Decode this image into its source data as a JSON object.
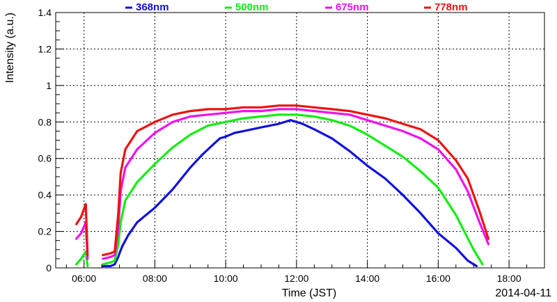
{
  "chart_data": {
    "type": "line",
    "title": "",
    "xlabel": "Time (JST)",
    "ylabel": "Intensity (a.u.)",
    "date_label": "2014-04-11",
    "xlim": [
      "05:12",
      "19:00"
    ],
    "ylim": [
      0,
      1.4
    ],
    "grid": true,
    "legend_position": "top",
    "x_ticks": [
      "06:00",
      "08:00",
      "10:00",
      "12:00",
      "14:00",
      "16:00",
      "18:00"
    ],
    "y_ticks": [
      "0",
      "0.2",
      "0.4",
      "0.6",
      "0.8",
      "1",
      "1.2",
      "1.4"
    ],
    "series": [
      {
        "name": "368nm",
        "color": "#1010dd",
        "segments": [
          [
            [
              "06:32",
              0.01
            ],
            [
              "06:45",
              0.01
            ],
            [
              "06:52",
              0.02
            ],
            [
              "06:58",
              0.06
            ],
            [
              "07:00",
              0.08
            ],
            [
              "07:05",
              0.12
            ],
            [
              "07:15",
              0.18
            ],
            [
              "07:30",
              0.25
            ],
            [
              "08:00",
              0.33
            ],
            [
              "08:30",
              0.43
            ],
            [
              "09:00",
              0.55
            ],
            [
              "09:20",
              0.62
            ],
            [
              "09:40",
              0.68
            ],
            [
              "09:50",
              0.71
            ],
            [
              "10:00",
              0.72
            ],
            [
              "10:15",
              0.74
            ],
            [
              "10:30",
              0.75
            ],
            [
              "11:00",
              0.77
            ],
            [
              "11:30",
              0.79
            ],
            [
              "11:50",
              0.81
            ],
            [
              "12:00",
              0.8
            ],
            [
              "12:10",
              0.79
            ],
            [
              "12:30",
              0.76
            ],
            [
              "13:00",
              0.71
            ],
            [
              "13:30",
              0.64
            ],
            [
              "14:00",
              0.56
            ],
            [
              "14:30",
              0.49
            ],
            [
              "15:00",
              0.4
            ],
            [
              "15:30",
              0.3
            ],
            [
              "16:00",
              0.19
            ],
            [
              "16:30",
              0.11
            ],
            [
              "16:50",
              0.04
            ],
            [
              "17:05",
              0.01
            ]
          ]
        ]
      },
      {
        "name": "500nm",
        "color": "#11ee11",
        "segments": [
          [
            [
              "05:47",
              0.02
            ],
            [
              "05:55",
              0.05
            ],
            [
              "06:03",
              0.09
            ],
            [
              "06:06",
              0.01
            ]
          ],
          [
            [
              "06:32",
              0.02
            ],
            [
              "06:45",
              0.03
            ],
            [
              "06:52",
              0.04
            ],
            [
              "06:58",
              0.13
            ],
            [
              "07:02",
              0.25
            ],
            [
              "07:10",
              0.37
            ],
            [
              "07:30",
              0.47
            ],
            [
              "08:00",
              0.57
            ],
            [
              "08:30",
              0.66
            ],
            [
              "09:00",
              0.73
            ],
            [
              "09:30",
              0.78
            ],
            [
              "10:00",
              0.8
            ],
            [
              "10:30",
              0.82
            ],
            [
              "11:00",
              0.83
            ],
            [
              "11:30",
              0.84
            ],
            [
              "12:00",
              0.84
            ],
            [
              "12:30",
              0.83
            ],
            [
              "13:00",
              0.81
            ],
            [
              "13:30",
              0.78
            ],
            [
              "14:00",
              0.73
            ],
            [
              "14:30",
              0.67
            ],
            [
              "15:00",
              0.61
            ],
            [
              "15:30",
              0.53
            ],
            [
              "16:00",
              0.44
            ],
            [
              "16:30",
              0.29
            ],
            [
              "17:00",
              0.1
            ],
            [
              "17:15",
              0.02
            ]
          ]
        ]
      },
      {
        "name": "675nm",
        "color": "#ee11ee",
        "segments": [
          [
            [
              "05:47",
              0.16
            ],
            [
              "05:55",
              0.19
            ],
            [
              "06:03",
              0.25
            ],
            [
              "06:06",
              0.05
            ]
          ],
          [
            [
              "06:32",
              0.05
            ],
            [
              "06:45",
              0.06
            ],
            [
              "06:52",
              0.07
            ],
            [
              "06:58",
              0.22
            ],
            [
              "07:02",
              0.42
            ],
            [
              "07:10",
              0.55
            ],
            [
              "07:30",
              0.65
            ],
            [
              "08:00",
              0.74
            ],
            [
              "08:30",
              0.8
            ],
            [
              "09:00",
              0.83
            ],
            [
              "09:30",
              0.84
            ],
            [
              "10:00",
              0.85
            ],
            [
              "10:30",
              0.86
            ],
            [
              "11:00",
              0.86
            ],
            [
              "11:30",
              0.87
            ],
            [
              "12:00",
              0.87
            ],
            [
              "12:30",
              0.86
            ],
            [
              "13:00",
              0.85
            ],
            [
              "13:30",
              0.84
            ],
            [
              "14:00",
              0.81
            ],
            [
              "14:30",
              0.78
            ],
            [
              "15:00",
              0.75
            ],
            [
              "15:30",
              0.71
            ],
            [
              "16:00",
              0.65
            ],
            [
              "16:30",
              0.54
            ],
            [
              "16:50",
              0.42
            ],
            [
              "17:10",
              0.25
            ],
            [
              "17:25",
              0.13
            ]
          ]
        ]
      },
      {
        "name": "778nm",
        "color": "#ee1111",
        "segments": [
          [
            [
              "05:47",
              0.24
            ],
            [
              "05:55",
              0.28
            ],
            [
              "06:03",
              0.35
            ],
            [
              "06:06",
              0.07
            ]
          ],
          [
            [
              "06:32",
              0.07
            ],
            [
              "06:45",
              0.08
            ],
            [
              "06:52",
              0.09
            ],
            [
              "06:58",
              0.3
            ],
            [
              "07:02",
              0.52
            ],
            [
              "07:10",
              0.65
            ],
            [
              "07:30",
              0.75
            ],
            [
              "08:00",
              0.8
            ],
            [
              "08:30",
              0.84
            ],
            [
              "09:00",
              0.86
            ],
            [
              "09:30",
              0.87
            ],
            [
              "10:00",
              0.87
            ],
            [
              "10:30",
              0.88
            ],
            [
              "11:00",
              0.88
            ],
            [
              "11:30",
              0.89
            ],
            [
              "12:00",
              0.89
            ],
            [
              "12:30",
              0.88
            ],
            [
              "13:00",
              0.87
            ],
            [
              "13:30",
              0.86
            ],
            [
              "14:00",
              0.84
            ],
            [
              "14:30",
              0.82
            ],
            [
              "15:00",
              0.79
            ],
            [
              "15:30",
              0.76
            ],
            [
              "16:00",
              0.7
            ],
            [
              "16:30",
              0.59
            ],
            [
              "16:50",
              0.49
            ],
            [
              "17:10",
              0.31
            ],
            [
              "17:25",
              0.16
            ]
          ]
        ]
      }
    ]
  }
}
